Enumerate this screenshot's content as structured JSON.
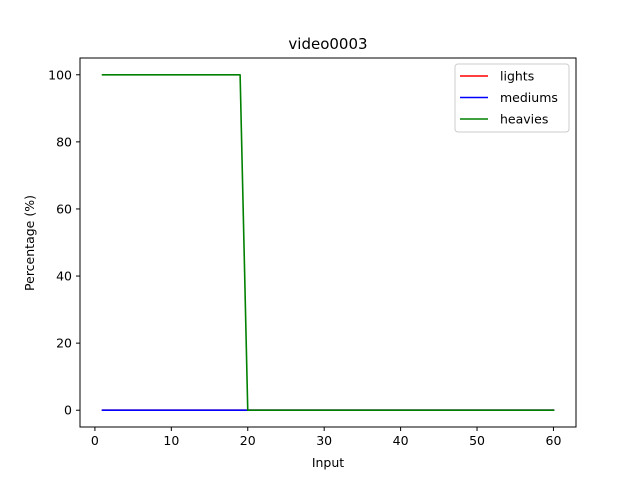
{
  "chart_data": {
    "type": "line",
    "title": "video0003",
    "xlabel": "Input",
    "ylabel": "Percentage (%)",
    "xlim": [
      -1.95,
      62.95
    ],
    "ylim": [
      -5,
      105
    ],
    "xticks": [
      0,
      10,
      20,
      30,
      40,
      50,
      60
    ],
    "yticks": [
      0,
      20,
      40,
      60,
      80,
      100
    ],
    "grid": false,
    "legend_position": "top-right",
    "series": [
      {
        "name": "lights",
        "color": "#ff0000",
        "x": [
          1,
          60
        ],
        "y": [
          0,
          0
        ]
      },
      {
        "name": "mediums",
        "color": "#0000ff",
        "x": [
          1,
          60
        ],
        "y": [
          0,
          0
        ]
      },
      {
        "name": "heavies",
        "color": "#008000",
        "x": [
          1,
          19,
          20,
          60
        ],
        "y": [
          100,
          100,
          0,
          0
        ]
      }
    ]
  }
}
